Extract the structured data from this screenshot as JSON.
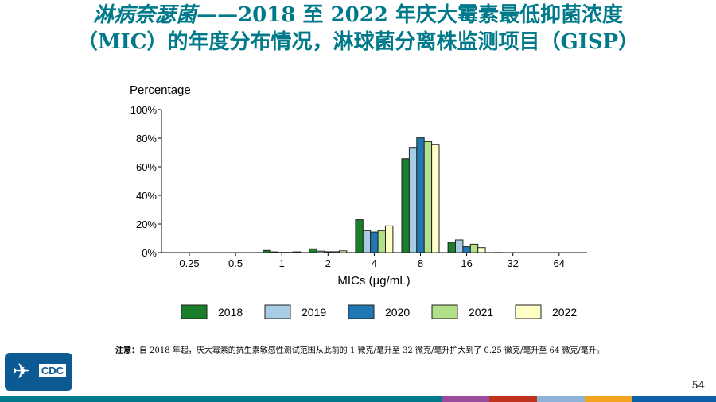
{
  "title": {
    "italic": "淋病奈瑟菌",
    "line1_rest": "——2018 至 2022 年庆大霉素最低抑菌浓度",
    "line2": "（MIC）的年度分布情况，淋球菌分离株监测项目（GISP）"
  },
  "chart_data": {
    "type": "bar",
    "ylabel": "Percentage",
    "xlabel": "MICs (µg/mL)",
    "categories": [
      "0.25",
      "0.5",
      "1",
      "2",
      "4",
      "8",
      "16",
      "32",
      "64"
    ],
    "yticks": [
      "0%",
      "20%",
      "40%",
      "60%",
      "80%",
      "100%"
    ],
    "ylim": [
      0,
      100
    ],
    "legend_position": "bottom",
    "series": [
      {
        "name": "2018",
        "color": "#1a7f2a",
        "values": [
          0,
          0,
          1.5,
          2.6,
          23,
          65.7,
          7.2,
          0.1,
          0
        ]
      },
      {
        "name": "2019",
        "color": "#a6cde3",
        "values": [
          0,
          0,
          0.5,
          1,
          15.4,
          73.5,
          8.9,
          0,
          0
        ]
      },
      {
        "name": "2020",
        "color": "#1f78b4",
        "values": [
          0,
          0,
          0.2,
          0.6,
          14.4,
          80.2,
          4.1,
          0,
          0
        ]
      },
      {
        "name": "2021",
        "color": "#b2df8a",
        "values": [
          0,
          0,
          0.2,
          0.6,
          15.4,
          77.6,
          5.9,
          0,
          0
        ]
      },
      {
        "name": "2022",
        "color": "#ffffc6",
        "values": [
          0,
          0,
          0.5,
          1.2,
          18.7,
          75.7,
          3.5,
          0,
          0
        ]
      }
    ]
  },
  "note": {
    "label": "注意：",
    "text": "自 2018 年起，庆大霉素的抗生素敏感性测试范围从此前的 1 微克/毫升至 32 微克/毫升扩大到了 0.25 微克/毫升至 64 微克/毫升。"
  },
  "logo": {
    "text": "CDC"
  },
  "page_number": "54",
  "footer_colors": [
    "#007a8a",
    "#9a4c9c",
    "#c0311f",
    "#8db3d9",
    "#f2a31f",
    "#0d5fa8"
  ]
}
